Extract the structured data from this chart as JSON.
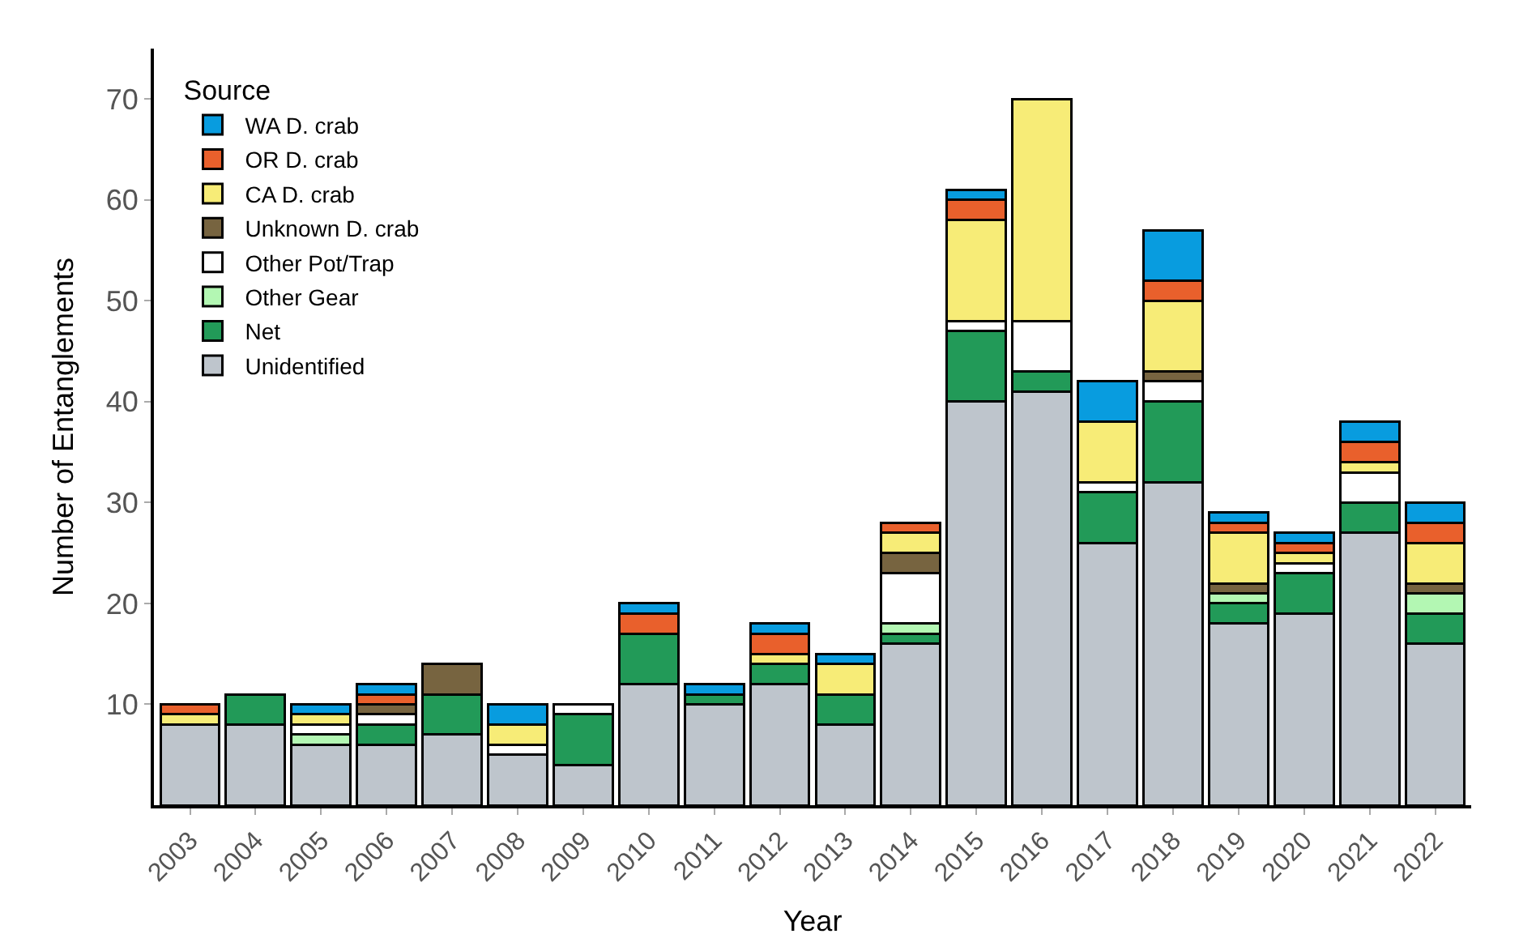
{
  "chart_data": {
    "type": "bar",
    "stacked": true,
    "xlabel": "Year",
    "ylabel": "Number of Entanglements",
    "legend_title": "Source",
    "legend": "top left",
    "categories": [
      "2003",
      "2004",
      "2005",
      "2006",
      "2007",
      "2008",
      "2009",
      "2010",
      "2011",
      "2012",
      "2013",
      "2014",
      "2015",
      "2016",
      "2017",
      "2018",
      "2019",
      "2020",
      "2021",
      "2022"
    ],
    "ylim": [
      0,
      75
    ],
    "yticks": [
      10,
      20,
      30,
      40,
      50,
      60,
      70
    ],
    "series": [
      {
        "name": "Unidentified",
        "color": "#bec5cc",
        "values": [
          8,
          8,
          6,
          6,
          7,
          5,
          4,
          12,
          10,
          12,
          8,
          16,
          40,
          41,
          26,
          32,
          18,
          19,
          27,
          16
        ]
      },
      {
        "name": "Net",
        "color": "#229a58",
        "values": [
          0,
          3,
          0,
          2,
          4,
          0,
          5,
          5,
          1,
          2,
          3,
          1,
          7,
          2,
          5,
          8,
          2,
          4,
          3,
          3
        ]
      },
      {
        "name": "Other Gear",
        "color": "#b3f7b3",
        "values": [
          0,
          0,
          1,
          0,
          0,
          0,
          0,
          0,
          0,
          0,
          0,
          1,
          0,
          0,
          0,
          0,
          1,
          0,
          0,
          2
        ]
      },
      {
        "name": "Other Pot/Trap",
        "color": "#ffffff",
        "values": [
          0,
          0,
          1,
          1,
          0,
          1,
          1,
          0,
          0,
          0,
          0,
          5,
          1,
          5,
          1,
          2,
          0,
          1,
          3,
          0
        ]
      },
      {
        "name": "Unknown D. crab",
        "color": "#776440",
        "values": [
          0,
          0,
          0,
          1,
          3,
          0,
          0,
          0,
          0,
          0,
          0,
          2,
          0,
          0,
          0,
          1,
          1,
          0,
          0,
          1
        ]
      },
      {
        "name": "CA D. crab",
        "color": "#f7ec77",
        "values": [
          1,
          0,
          1,
          0,
          0,
          2,
          0,
          0,
          0,
          1,
          3,
          2,
          10,
          22,
          6,
          7,
          5,
          1,
          1,
          4
        ]
      },
      {
        "name": "OR D. crab",
        "color": "#e9602c",
        "values": [
          1,
          0,
          0,
          1,
          0,
          0,
          0,
          2,
          0,
          2,
          0,
          1,
          2,
          0,
          0,
          2,
          1,
          1,
          2,
          2
        ]
      },
      {
        "name": "WA D. crab",
        "color": "#089cdf",
        "values": [
          0,
          0,
          1,
          1,
          0,
          2,
          0,
          1,
          1,
          1,
          1,
          0,
          1,
          0,
          4,
          5,
          1,
          1,
          2,
          2
        ]
      }
    ]
  }
}
